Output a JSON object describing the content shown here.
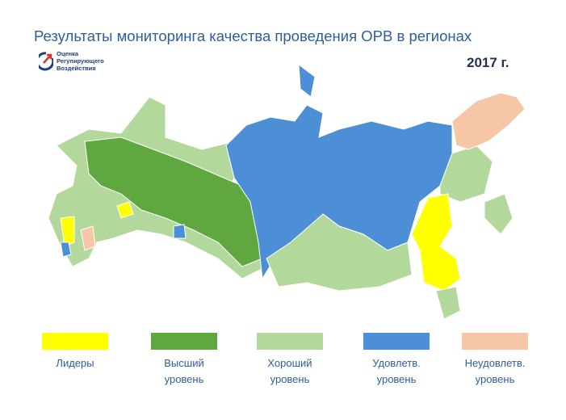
{
  "header": {
    "title": "Результаты мониторинга качества проведения ОРВ в регионах",
    "logo": [
      "Оценка",
      "Регулирующего",
      "Воздействия"
    ],
    "year": "2017 г."
  },
  "legend": [
    {
      "label": [
        "Лидеры"
      ]
    },
    {
      "label": [
        "Высший",
        "уровень"
      ]
    },
    {
      "label": [
        "Хороший",
        "уровень"
      ]
    },
    {
      "label": [
        "Удовлетв.",
        "уровень"
      ]
    },
    {
      "label": [
        "Неудовлетв.",
        "уровень"
      ]
    }
  ]
}
